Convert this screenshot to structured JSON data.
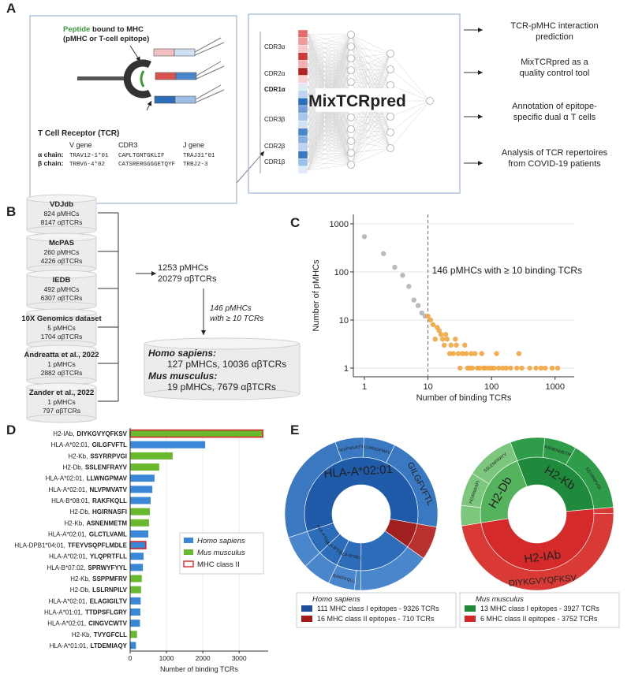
{
  "panel_labels": [
    "A",
    "B",
    "C",
    "D",
    "E"
  ],
  "panel_a": {
    "peptide_word": "Peptide",
    "peptide_rest": " bound to MHC",
    "pmhc": "(pMHC or T-cell epitope)",
    "tcr": "T Cell Receptor (TCR)",
    "table": {
      "header": [
        "V gene",
        "CDR3",
        "J gene"
      ],
      "rows": [
        [
          "α chain:",
          "TRAV12-1*01",
          "CAPLTGNTGKLIF",
          "TRAJ31*01"
        ],
        [
          "β chain:",
          "TRBV6-4*02",
          "CATSRERGGGGETQYF",
          "TRBJ2-3"
        ]
      ]
    },
    "model": "MixTCRpred",
    "cdr_labels": [
      "CDR3α",
      "CDR2α",
      "CDR1α",
      "CDR3β",
      "CDR2β",
      "CDR1β"
    ],
    "outputs": [
      [
        "TCR-pMHC interaction",
        "prediction"
      ],
      [
        "MixTCRpred as a",
        "quality control tool"
      ],
      [
        "Annotation of epitope-",
        "specific dual α T cells"
      ],
      [
        "Analysis of TCR repertoires",
        "from COVID-19 patients"
      ]
    ]
  },
  "panel_b": {
    "databases": [
      {
        "name": "VDJdb",
        "pmhcs": "824 pMHCs",
        "tcrs": "8147 αβTCRs"
      },
      {
        "name": "McPAS",
        "pmhcs": "260 pMHCs",
        "tcrs": "4226 αβTCRs"
      },
      {
        "name": "IEDB",
        "pmhcs": "492 pMHCs",
        "tcrs": "6307 αβTCRs"
      },
      {
        "name": "10X Genomics dataset",
        "pmhcs": "5 pMHCs",
        "tcrs": "1704 αβTCRs"
      },
      {
        "name": "Andreatta et al., 2022",
        "pmhcs": "1 pMHCs",
        "tcrs": "2882 αβTCRs"
      },
      {
        "name": "Zander et al., 2022",
        "pmhcs": "1 pMHCs",
        "tcrs": "797 αβTCRs"
      }
    ],
    "total": [
      "1253 pMHCs",
      "20279 αβTCRs"
    ],
    "filter": [
      "146 pMHCs",
      "with ≥ 10 TCRs"
    ],
    "homo": {
      "name": "Homo sapiens:",
      "text": "127 pMHCs, 10036 αβTCRs"
    },
    "mus": {
      "name": "Mus musculus:",
      "text": "19 pMHCs, 7679 αβTCRs"
    }
  },
  "chart_data": [
    {
      "type": "scatter",
      "xlabel": "Number of binding TCRs",
      "ylabel": "Number of pMHCs",
      "annotation": "146 pMHCs with ≥ 10 binding TCRs",
      "vline": 10,
      "x": [
        1,
        2,
        3,
        4,
        5,
        6,
        7,
        8,
        9,
        10,
        11,
        12,
        13,
        14,
        15,
        16,
        17,
        18,
        19,
        20,
        22,
        23,
        25,
        27,
        28,
        30,
        32,
        35,
        38,
        40,
        42,
        45,
        48,
        50,
        55,
        60,
        65,
        70,
        75,
        80,
        90,
        100,
        110,
        120,
        130,
        150,
        170,
        200,
        250,
        270,
        300,
        400,
        500,
        600,
        700,
        900,
        1100
      ],
      "y": [
        540,
        240,
        125,
        85,
        50,
        26,
        20,
        14,
        12,
        12,
        10,
        8,
        4,
        7,
        6,
        5,
        4,
        3,
        5,
        4,
        2,
        3,
        2,
        4,
        3,
        2,
        1,
        2,
        3,
        2,
        1,
        1,
        2,
        1,
        2,
        1,
        1,
        2,
        1,
        1,
        1,
        1,
        1,
        2,
        1,
        1,
        1,
        1,
        1,
        2,
        1,
        1,
        1,
        1,
        1,
        1,
        1
      ],
      "color_below_line": "#b3b3b3",
      "color_above_line": "#f2a541",
      "xlog": true,
      "ylog": true,
      "xlim": [
        0.67,
        2000
      ],
      "ylim": [
        0.66,
        1570
      ],
      "xticks": [
        1,
        10,
        100,
        1000
      ],
      "yticks": [
        1,
        10,
        100,
        1000
      ],
      "grid": true
    },
    {
      "type": "barh",
      "xlabel": "Number of binding TCRs",
      "mhc": [
        "H2-IAb,",
        "HLA-A*02:01,",
        "H2-Kb,",
        "H2-Db,",
        "HLA-A*02:01,",
        "HLA-A*02:01,",
        "HLA-B*08:01,",
        "H2-Db,",
        "H2-Kb,",
        "HLA-A*02:01,",
        "HLA-DPB1*04:01,",
        "HLA-A*02:01,",
        "HLA-B*07:02,",
        "H2-Kb,",
        "H2-Db,",
        "HLA-A*02:01,",
        "HLA-A*01:01,",
        "HLA-A*02:01,",
        "H2-Kb,",
        "HLA-A*01:01,"
      ],
      "categories": [
        "DIYKGVYQFKSV",
        "GILGFVFTL",
        "SSYRRPVGI",
        "SSLENFRAYV",
        "LLWNGPMAV",
        "NLVPMVATV",
        "RAKFKQLL",
        "HGIRNASFI",
        "ASNENMETM",
        "GLCTLVAML",
        "TFEYVSQPFLMDLE",
        "YLQPRTFLL",
        "SPRWYFYYL",
        "SSPPMFRV",
        "LSLRNPILV",
        "ELAGIGILTV",
        "TTDPSFLGRY",
        "CINGVCWTV",
        "TVYGFCLL",
        "LTDEMIAQY"
      ],
      "series": [
        {
          "name": "Homo sapiens",
          "color": "#3a87d8",
          "values": [
            null,
            2065,
            null,
            null,
            670,
            610,
            565,
            null,
            null,
            500,
            430,
            370,
            350,
            null,
            null,
            290,
            280,
            270,
            null,
            160
          ]
        },
        {
          "name": "Mus musculus",
          "color": "#6ab82e",
          "values": [
            3650,
            null,
            1170,
            800,
            null,
            null,
            null,
            545,
            520,
            null,
            null,
            null,
            null,
            320,
            300,
            null,
            null,
            null,
            190,
            null
          ]
        }
      ],
      "outline": {
        "name": "MHC class II",
        "color": "#d62728",
        "indices": [
          0,
          10
        ]
      },
      "xlim": [
        0,
        3800
      ],
      "xticks": [
        0,
        1000,
        2000,
        3000
      ],
      "grid": true
    },
    {
      "type": "sunburst",
      "legend_title": "Homo sapiens",
      "legend": [
        {
          "label": "111 MHC class I epitopes - 9326 TCRs",
          "color": "#1f4e9c"
        },
        {
          "label": "16 MHC class II epitopes - 710 TCRs",
          "color": "#a31a1a"
        }
      ],
      "inner": {
        "labels": [
          "HLA-A*02:01",
          "HLA-A*01:01",
          "HLA-B*07:02",
          "HLA-B*08:01",
          null,
          null
        ],
        "values": [
          5800,
          700,
          600,
          700,
          1526,
          710
        ],
        "colors": [
          "#1f5ba8",
          "#2d6cb8",
          "#2d6cb8",
          "#2d6cb8",
          "#2d6cb8",
          "#a01f1f"
        ]
      },
      "outer": {
        "labels": [
          "GILGFVFTL",
          "LLWNGPMAV",
          "NLVPMVATV",
          null,
          null,
          null,
          "RAKFKQLL",
          null,
          null,
          null
        ],
        "values": [
          2065,
          670,
          610,
          2455,
          700,
          600,
          565,
          135,
          1526,
          710
        ],
        "colors": [
          "#3a78c2",
          "#3a78c2",
          "#3a78c2",
          "#3a78c2",
          "#4a86cc",
          "#4a86cc",
          "#4a86cc",
          "#4a86cc",
          "#4a86cc",
          "#b8312f"
        ]
      }
    },
    {
      "type": "sunburst",
      "legend_title": "Mus musculus",
      "legend": [
        {
          "label": "13 MHC class I epitopes - 3927 TCRs",
          "color": "#1e8a3a"
        },
        {
          "label": "6 MHC class II epitopes - 3752 TCRs",
          "color": "#d62728"
        }
      ],
      "inner": {
        "labels": [
          "H2-Kb",
          "H2-Db",
          "H2-IAb"
        ],
        "values": [
          2250,
          1677,
          3752
        ],
        "colors": [
          "#1f8a3c",
          "#55b35e",
          "#d42a2a"
        ]
      },
      "outer": {
        "labels": [
          "SSYRRPVGI",
          "ASNENMETM",
          null,
          "SSLENFRAYV",
          "HGIRNASFI",
          null,
          "DIYKGVYQFKSV",
          null
        ],
        "values": [
          1170,
          520,
          560,
          800,
          545,
          332,
          3650,
          102
        ],
        "colors": [
          "#2e9c49",
          "#2e9c49",
          "#2e9c49",
          "#7cc67e",
          "#7cc67e",
          "#7cc67e",
          "#d93a36",
          "#d93a36"
        ]
      }
    }
  ]
}
